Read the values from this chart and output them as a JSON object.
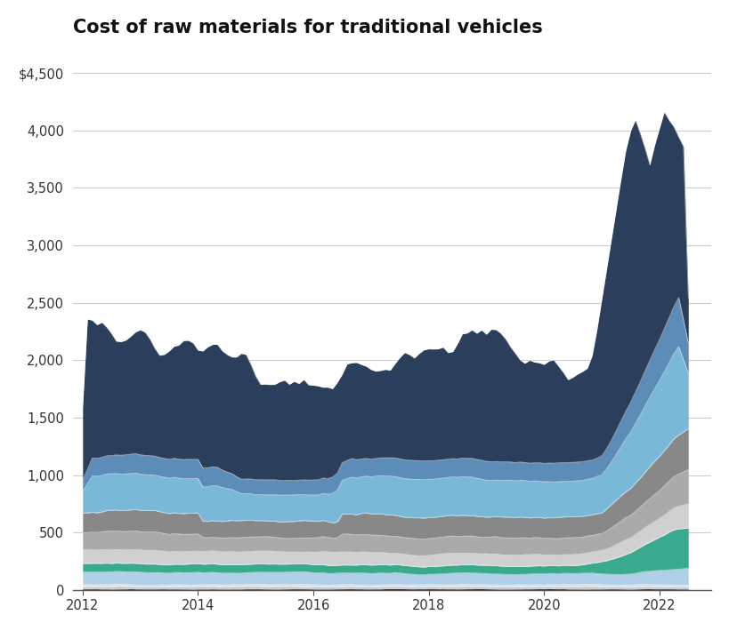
{
  "title": "Cost of raw materials for traditional vehicles",
  "title_fontsize": 15,
  "background_color": "#ffffff",
  "ylim": [
    0,
    4700
  ],
  "yticks": [
    0,
    500,
    1000,
    1500,
    2000,
    2500,
    3000,
    3500,
    4000,
    4500
  ],
  "ytick_labels": [
    "0",
    "500",
    "1,000",
    "1,500",
    "2,000",
    "2,500",
    "3,000",
    "3,500",
    "4,000",
    "$4,500"
  ],
  "xticks": [
    2012,
    2014,
    2016,
    2018,
    2020,
    2022
  ],
  "layer_colors": [
    "#1c1c1c",
    "#c0c0c0",
    "#e0e0e0",
    "#b0cfe8",
    "#3aaa8f",
    "#d0d0d0",
    "#aaaaaa",
    "#888888",
    "#7ab8d8",
    "#5b8db8",
    "#2b3f5c"
  ]
}
